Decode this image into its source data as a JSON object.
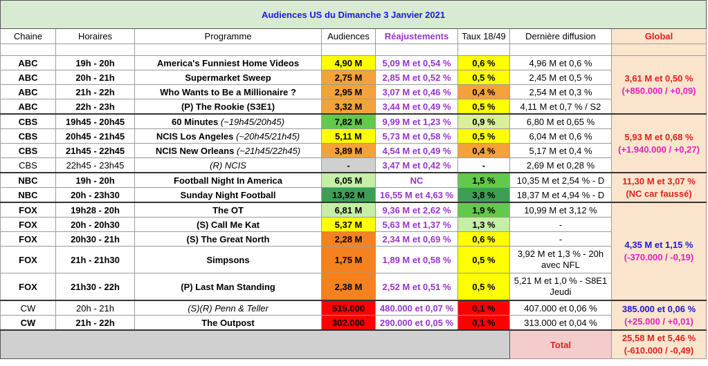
{
  "title": "Audiences US du Dimanche 3 Janvier 2021",
  "headers": {
    "chaine": "Chaine",
    "horaires": "Horaires",
    "programme": "Programme",
    "audiences": "Audiences",
    "reajustements": "Réajustements",
    "taux": "Taux 18/49",
    "derniere": "Dernière diffusion",
    "global": "Global"
  },
  "rows": [
    {
      "chaine": "ABC",
      "horaires": "19h - 20h",
      "programme": "America's Funniest Home Videos",
      "prog_note": "",
      "audiences": "4,90 M",
      "aud_color": "#ffff00",
      "reaj": "5,09 M et 0,54 %",
      "taux": "0,6 %",
      "taux_color": "#ffff00",
      "derniere": "4,96 M et 0,6 %"
    },
    {
      "chaine": "ABC",
      "horaires": "20h - 21h",
      "programme": "Supermarket Sweep",
      "prog_note": "",
      "audiences": "2,75 M",
      "aud_color": "#f6a23a",
      "reaj": "2,85 M et 0,52 %",
      "taux": "0,5 %",
      "taux_color": "#ffff00",
      "derniere": "2,45 M et 0,5 %"
    },
    {
      "chaine": "ABC",
      "horaires": "21h - 22h",
      "programme": "Who Wants to Be a Millionaire ?",
      "prog_note": "",
      "audiences": "2,95 M",
      "aud_color": "#f6a23a",
      "reaj": "3,07 M et 0,46 %",
      "taux": "0,4 %",
      "taux_color": "#f6a23a",
      "derniere": "2,54 M et 0,3 %"
    },
    {
      "chaine": "ABC",
      "horaires": "22h - 23h",
      "programme": "(P) The Rookie (S3E1)",
      "prog_note": "",
      "audiences": "3,32 M",
      "aud_color": "#f6a23a",
      "reaj": "3,44 M et 0,49 %",
      "taux": "0,5 %",
      "taux_color": "#ffff00",
      "derniere": "4,11 M et 0,7 % / S2"
    },
    {
      "chaine": "CBS",
      "horaires": "19h45 - 20h45",
      "programme": "60 Minutes",
      "prog_note": "(~19h45/20h45)",
      "audiences": "7,82 M",
      "aud_color": "#63c94a",
      "reaj": "9,99 M et 1,23 %",
      "taux": "0,9 %",
      "taux_color": "#d9ef9a",
      "derniere": "6,80 M et 0,65 %"
    },
    {
      "chaine": "CBS",
      "horaires": "20h45 - 21h45",
      "programme": "NCIS Los Angeles",
      "prog_note": "(~20h45/21h45)",
      "audiences": "5,11 M",
      "aud_color": "#ffff00",
      "reaj": "5,73 M et 0,58 %",
      "taux": "0,5 %",
      "taux_color": "#ffff00",
      "derniere": "6,04 M et 0,6 %"
    },
    {
      "chaine": "CBS",
      "horaires": "21h45 - 22h45",
      "programme": "NCIS New Orleans",
      "prog_note": "(~21h45/22h45)",
      "audiences": "3,89 M",
      "aud_color": "#f6a23a",
      "reaj": "4,54 M et 0,49 %",
      "taux": "0,4 %",
      "taux_color": "#f6a23a",
      "derniere": "5,17 M et 0,4 %"
    },
    {
      "chaine": "CBS",
      "horaires": "22h45 - 23h45",
      "programme": "",
      "prog_note": "(R) NCIS",
      "audiences": "-",
      "aud_color": "#d0d0d0",
      "reaj": "3,47 M et 0,42 %",
      "taux": "-",
      "taux_color": "#ffffff",
      "derniere": "2,69 M et 0,28 %",
      "light": true
    },
    {
      "chaine": "NBC",
      "horaires": "19h - 20h",
      "programme": "Football Night In America",
      "prog_note": "",
      "audiences": "6,05 M",
      "aud_color": "#c6efa6",
      "reaj": "NC",
      "taux": "1,5 %",
      "taux_color": "#63c94a",
      "derniere": "10,35 M et 2,54 % - D"
    },
    {
      "chaine": "NBC",
      "horaires": "20h - 23h30",
      "programme": "Sunday Night Football",
      "prog_note": "",
      "audiences": "13,92 M",
      "aud_color": "#3e9e55",
      "reaj": "16,55 M et 4,63 %",
      "taux": "3,8 %",
      "taux_color": "#3e9e55",
      "derniere": "18,37 M et 4,94 % - D"
    },
    {
      "chaine": "FOX",
      "horaires": "19h28 - 20h",
      "programme": "The OT",
      "prog_note": "",
      "audiences": "6,81 M",
      "aud_color": "#c6efa6",
      "reaj": "9,36 M et 2,62 %",
      "taux": "1,9 %",
      "taux_color": "#63c94a",
      "derniere": "10,99 M et 3,12 %"
    },
    {
      "chaine": "FOX",
      "horaires": "20h - 20h30",
      "programme": "(S) Call Me Kat",
      "prog_note": "",
      "audiences": "5,37 M",
      "aud_color": "#ffff00",
      "reaj": "5,63 M et 1,37 %",
      "taux": "1,3 %",
      "taux_color": "#c6efa6",
      "derniere": "-"
    },
    {
      "chaine": "FOX",
      "horaires": "20h30 - 21h",
      "programme": "(S) The Great North",
      "prog_note": "",
      "audiences": "2,28 M",
      "aud_color": "#f6821f",
      "reaj": "2,34 M et 0,69 %",
      "taux": "0,6 %",
      "taux_color": "#ffff00",
      "derniere": "-"
    },
    {
      "chaine": "FOX",
      "horaires": "21h - 21h30",
      "programme": "Simpsons",
      "prog_note": "",
      "audiences": "1,75 M",
      "aud_color": "#f6821f",
      "reaj": "1,89 M et 0,58 %",
      "taux": "0,5 %",
      "taux_color": "#ffff00",
      "derniere": "3,92 M et 1,3 % - 20h avec NFL",
      "tall": true
    },
    {
      "chaine": "FOX",
      "horaires": "21h30 - 22h",
      "programme": "(P) Last Man Standing",
      "prog_note": "",
      "audiences": "2,38 M",
      "aud_color": "#f6821f",
      "reaj": "2,52 M et 0,51 %",
      "taux": "0,5 %",
      "taux_color": "#ffff00",
      "derniere": "5,21 M et 1,0 % - S8E1 Jeudi",
      "tall": true
    },
    {
      "chaine": "CW",
      "horaires": "20h - 21h",
      "programme": "",
      "prog_note": "(S)(R) Penn & Teller",
      "audiences": "515.000",
      "aud_color": "#ff0000",
      "reaj": "480.000 et 0,07 %",
      "taux": "0,1 %",
      "taux_color": "#ff0000",
      "derniere": "407.000 et 0,06 %",
      "light": true
    },
    {
      "chaine": "CW",
      "horaires": "21h - 22h",
      "programme": "The Outpost",
      "prog_note": "",
      "audiences": "302.000",
      "aud_color": "#ff0000",
      "reaj": "290.000 et 0,05 %",
      "taux": "0,1 %",
      "taux_color": "#ff0000",
      "derniere": "313.000 et 0,04 %"
    }
  ],
  "globals": {
    "abc": {
      "line1": "3,61 M et 0,50 %",
      "line2": "(+850.000 / +0,09)"
    },
    "cbs": {
      "line1": "5,93 M et 0,68 %",
      "line2": "(+1.940.000 / +0,27)"
    },
    "nbc": {
      "line1": "11,30 M et 3,07 %",
      "line2": "(NC car faussé)"
    },
    "fox": {
      "line1": "4,35 M et 1,15 %",
      "line2": "(-370.000 / -0,19)"
    },
    "cw": {
      "line1": "385.000 et 0,06 %",
      "line2": "(+25.000 / +0,01)"
    }
  },
  "total": {
    "label": "Total",
    "line1": "25,58 M et 5,46 %",
    "line2": "(-610.000 / -0,49)"
  }
}
